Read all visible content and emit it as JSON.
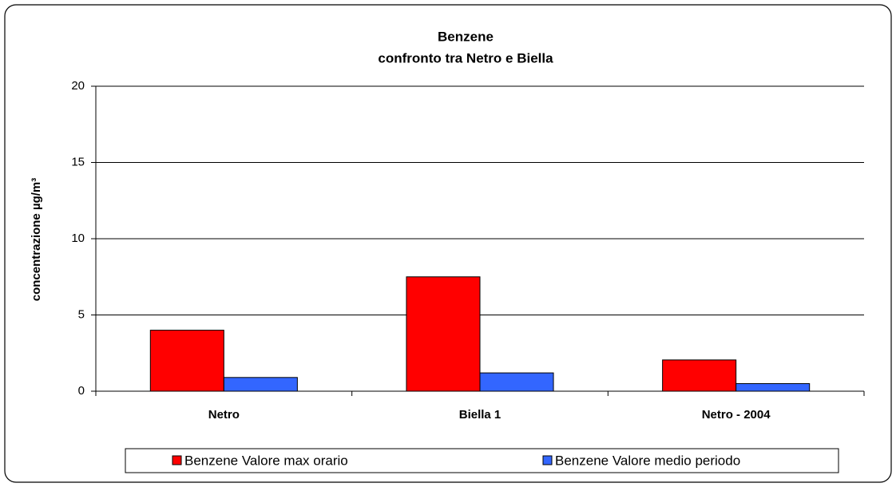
{
  "chart_data": {
    "type": "bar",
    "title": "Benzene",
    "subtitle": "confronto tra Netro e Biella",
    "y_label": "concentrazione µg/m³",
    "categories": [
      "Netro",
      "Biella 1",
      "Netro - 2004"
    ],
    "series": [
      {
        "name": "Benzene Valore max orario",
        "color": "#ff0000",
        "values": [
          4.0,
          7.5,
          2.05
        ]
      },
      {
        "name": "Benzene Valore medio periodo",
        "color": "#3366ff",
        "values": [
          0.9,
          1.2,
          0.5
        ]
      }
    ],
    "ylim": [
      0,
      20
    ],
    "yticks": [
      0,
      5,
      10,
      15,
      20
    ],
    "grid": true,
    "legend": "bottom"
  }
}
